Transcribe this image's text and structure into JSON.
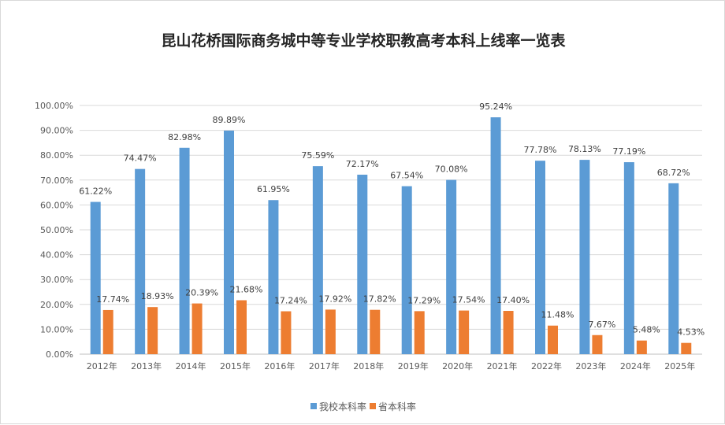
{
  "chart_data": {
    "type": "bar",
    "title": "昆山花桥国际商务城中等专业学校职教高考本科上线率一览表",
    "categories": [
      "2012年",
      "2013年",
      "2014年",
      "2015年",
      "2016年",
      "2017年",
      "2018年",
      "2019年",
      "2020年",
      "2021年",
      "2022年",
      "2023年",
      "2024年",
      "2025年"
    ],
    "series": [
      {
        "name": "我校本科率",
        "color": "#5b9bd5",
        "values": [
          61.22,
          74.47,
          82.98,
          89.89,
          61.95,
          75.59,
          72.17,
          67.54,
          70.08,
          95.24,
          77.78,
          78.13,
          77.19,
          68.72
        ],
        "labels": [
          "61.22%",
          "74.47%",
          "82.98%",
          "89.89%",
          "61.95%",
          "75.59%",
          "72.17%",
          "67.54%",
          "70.08%",
          "95.24%",
          "77.78%",
          "78.13%",
          "77.19%",
          "68.72%"
        ]
      },
      {
        "name": "省本科率",
        "color": "#ed7d31",
        "values": [
          17.74,
          18.93,
          20.39,
          21.68,
          17.24,
          17.92,
          17.82,
          17.29,
          17.54,
          17.4,
          11.48,
          7.67,
          5.48,
          4.53
        ],
        "labels": [
          "17.74%",
          "18.93%",
          "20.39%",
          "21.68%",
          "17.24%",
          "17.92%",
          "17.82%",
          "17.29%",
          "17.54%",
          "17.40%",
          "11.48%",
          "7.67%",
          "5.48%",
          "4.53%"
        ]
      }
    ],
    "ylim": [
      0,
      100
    ],
    "y_ticks": [
      "0.00%",
      "10.00%",
      "20.00%",
      "30.00%",
      "40.00%",
      "50.00%",
      "60.00%",
      "70.00%",
      "80.00%",
      "90.00%",
      "100.00%"
    ],
    "grid": true,
    "legend_position": "bottom"
  }
}
